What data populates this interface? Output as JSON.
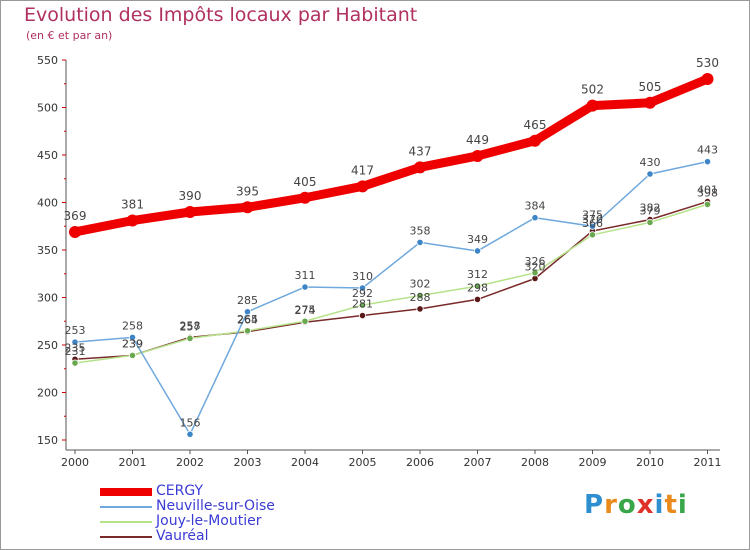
{
  "header": {
    "title": "Evolution des Impôts locaux par Habitant",
    "subtitle": "(en € et par an)"
  },
  "logo": {
    "text": "Proxiti",
    "letters": [
      {
        "char": "P",
        "color": "#2e8fd0"
      },
      {
        "char": "r",
        "color": "#e98a1c"
      },
      {
        "char": "o",
        "color": "#3aa64a"
      },
      {
        "char": "x",
        "color": "#e0302a"
      },
      {
        "char": "i",
        "color": "#2e8fd0"
      },
      {
        "char": "t",
        "color": "#e98a1c"
      },
      {
        "char": "i",
        "color": "#3aa64a"
      }
    ]
  },
  "chart_data": {
    "type": "line",
    "title": "Evolution des Impôts locaux par Habitant",
    "subtitle": "(en € et par an)",
    "xlabel": "",
    "ylabel": "",
    "x": [
      "2000",
      "2001",
      "2002",
      "2003",
      "2004",
      "2005",
      "2006",
      "2007",
      "2008",
      "2009",
      "2010",
      "2011"
    ],
    "ylim": [
      150,
      550
    ],
    "yticks": [
      150,
      200,
      250,
      300,
      350,
      400,
      450,
      500,
      550
    ],
    "grid": false,
    "legend_position": "bottom-left",
    "series": [
      {
        "name": "CERGY",
        "color": "#ee0000",
        "values": [
          369,
          381,
          390,
          395,
          405,
          417,
          437,
          449,
          465,
          502,
          505,
          530
        ]
      },
      {
        "name": "Neuville-sur-Oise",
        "color": "#6fa8dc",
        "marker_color": "#3d85c6",
        "values": [
          253,
          258,
          156,
          285,
          311,
          310,
          358,
          349,
          384,
          375,
          430,
          443
        ]
      },
      {
        "name": "Jouy-le-Moutier",
        "color": "#b6e38a",
        "marker_color": "#6aa84f",
        "values": [
          231,
          239,
          257,
          265,
          275,
          292,
          302,
          312,
          326,
          366,
          379,
          398
        ]
      },
      {
        "name": "Vauréal",
        "color": "#7a2a2a",
        "marker_color": "#5b1a1a",
        "values": [
          235,
          239,
          258,
          264,
          274,
          281,
          288,
          298,
          320,
          370,
          382,
          401
        ]
      }
    ]
  }
}
